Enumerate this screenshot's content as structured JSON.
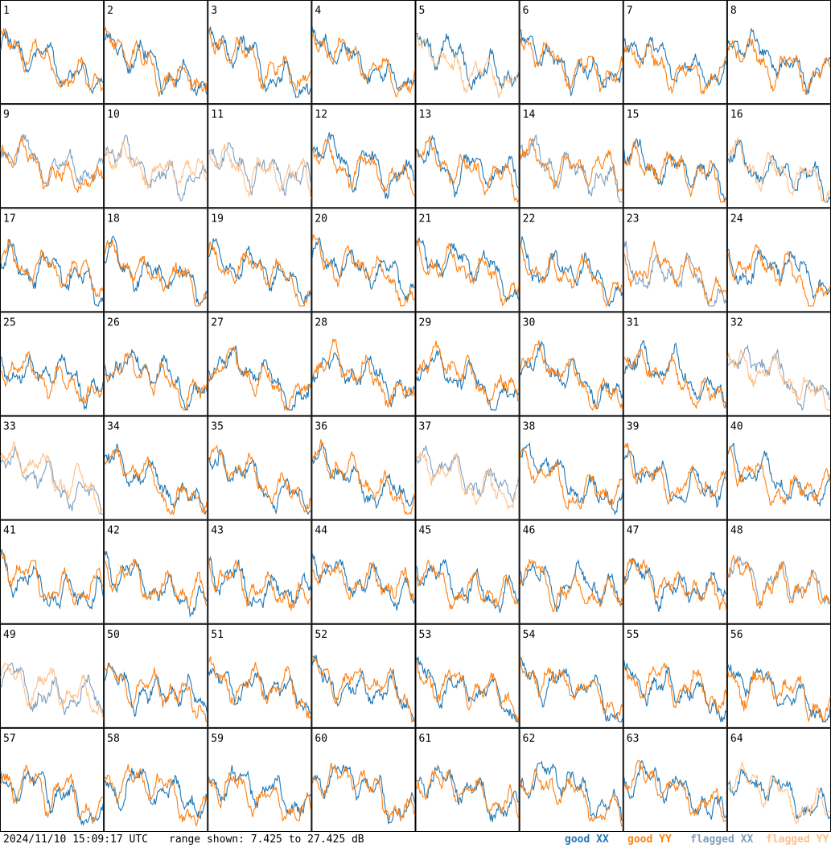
{
  "footer": {
    "timestamp": "2024/11/10 15:09:17 UTC",
    "range_text": "range shown: 7.425 to 27.425 dB"
  },
  "legend": {
    "good_xx": "good XX",
    "good_yy": "good YY",
    "flagged_xx": "flagged XX",
    "flagged_yy": "flagged YY"
  },
  "colors": {
    "good_xx": "#1f77b4",
    "good_yy": "#ff7f0e",
    "flagged_xx": "#7f9fbf",
    "flagged_yy": "#ffbf86"
  },
  "chart_data": {
    "type": "line",
    "panel_grid": [
      8,
      8
    ],
    "ylim_db": [
      7.425,
      27.425
    ],
    "panels": [
      {
        "label": "1",
        "xx": "good",
        "yy": "good"
      },
      {
        "label": "2",
        "xx": "good",
        "yy": "good"
      },
      {
        "label": "3",
        "xx": "good",
        "yy": "good"
      },
      {
        "label": "4",
        "xx": "good",
        "yy": "good"
      },
      {
        "label": "5",
        "xx": "good",
        "yy": "flagged"
      },
      {
        "label": "6",
        "xx": "good",
        "yy": "good"
      },
      {
        "label": "7",
        "xx": "good",
        "yy": "good"
      },
      {
        "label": "8",
        "xx": "good",
        "yy": "good"
      },
      {
        "label": "9",
        "xx": "flagged",
        "yy": "good"
      },
      {
        "label": "10",
        "xx": "flagged",
        "yy": "flagged"
      },
      {
        "label": "11",
        "xx": "flagged",
        "yy": "flagged"
      },
      {
        "label": "12",
        "xx": "good",
        "yy": "good"
      },
      {
        "label": "13",
        "xx": "good",
        "yy": "good"
      },
      {
        "label": "14",
        "xx": "flagged",
        "yy": "good"
      },
      {
        "label": "15",
        "xx": "good",
        "yy": "good"
      },
      {
        "label": "16",
        "xx": "good",
        "yy": "flagged"
      },
      {
        "label": "17",
        "xx": "good",
        "yy": "good"
      },
      {
        "label": "18",
        "xx": "good",
        "yy": "good"
      },
      {
        "label": "19",
        "xx": "good",
        "yy": "good"
      },
      {
        "label": "20",
        "xx": "good",
        "yy": "good"
      },
      {
        "label": "21",
        "xx": "good",
        "yy": "good"
      },
      {
        "label": "22",
        "xx": "good",
        "yy": "good"
      },
      {
        "label": "23",
        "xx": "flagged",
        "yy": "good"
      },
      {
        "label": "24",
        "xx": "good",
        "yy": "good"
      },
      {
        "label": "25",
        "xx": "good",
        "yy": "good"
      },
      {
        "label": "26",
        "xx": "good",
        "yy": "good"
      },
      {
        "label": "27",
        "xx": "good",
        "yy": "good"
      },
      {
        "label": "28",
        "xx": "good",
        "yy": "good"
      },
      {
        "label": "29",
        "xx": "good",
        "yy": "good"
      },
      {
        "label": "30",
        "xx": "good",
        "yy": "good"
      },
      {
        "label": "31",
        "xx": "good",
        "yy": "good"
      },
      {
        "label": "32",
        "xx": "flagged",
        "yy": "flagged"
      },
      {
        "label": "33",
        "xx": "flagged",
        "yy": "flagged"
      },
      {
        "label": "34",
        "xx": "good",
        "yy": "good"
      },
      {
        "label": "35",
        "xx": "good",
        "yy": "good"
      },
      {
        "label": "36",
        "xx": "good",
        "yy": "good"
      },
      {
        "label": "37",
        "xx": "flagged",
        "yy": "flagged"
      },
      {
        "label": "38",
        "xx": "good",
        "yy": "good"
      },
      {
        "label": "39",
        "xx": "good",
        "yy": "good"
      },
      {
        "label": "40",
        "xx": "good",
        "yy": "good"
      },
      {
        "label": "41",
        "xx": "good",
        "yy": "good"
      },
      {
        "label": "42",
        "xx": "good",
        "yy": "good"
      },
      {
        "label": "43",
        "xx": "good",
        "yy": "good"
      },
      {
        "label": "44",
        "xx": "good",
        "yy": "good"
      },
      {
        "label": "45",
        "xx": "good",
        "yy": "good"
      },
      {
        "label": "46",
        "xx": "good",
        "yy": "good"
      },
      {
        "label": "47",
        "xx": "good",
        "yy": "good"
      },
      {
        "label": "48",
        "xx": "flagged",
        "yy": "good"
      },
      {
        "label": "49",
        "xx": "flagged",
        "yy": "flagged"
      },
      {
        "label": "50",
        "xx": "good",
        "yy": "good"
      },
      {
        "label": "51",
        "xx": "good",
        "yy": "good"
      },
      {
        "label": "52",
        "xx": "good",
        "yy": "good"
      },
      {
        "label": "53",
        "xx": "good",
        "yy": "good"
      },
      {
        "label": "54",
        "xx": "good",
        "yy": "good"
      },
      {
        "label": "55",
        "xx": "good",
        "yy": "good"
      },
      {
        "label": "56",
        "xx": "good",
        "yy": "good"
      },
      {
        "label": "57",
        "xx": "good",
        "yy": "good"
      },
      {
        "label": "58",
        "xx": "good",
        "yy": "good"
      },
      {
        "label": "59",
        "xx": "good",
        "yy": "good"
      },
      {
        "label": "60",
        "xx": "good",
        "yy": "good"
      },
      {
        "label": "61",
        "xx": "good",
        "yy": "good"
      },
      {
        "label": "62",
        "xx": "good",
        "yy": "good"
      },
      {
        "label": "63",
        "xx": "good",
        "yy": "good"
      },
      {
        "label": "64",
        "xx": "good",
        "yy": "flagged"
      }
    ]
  }
}
